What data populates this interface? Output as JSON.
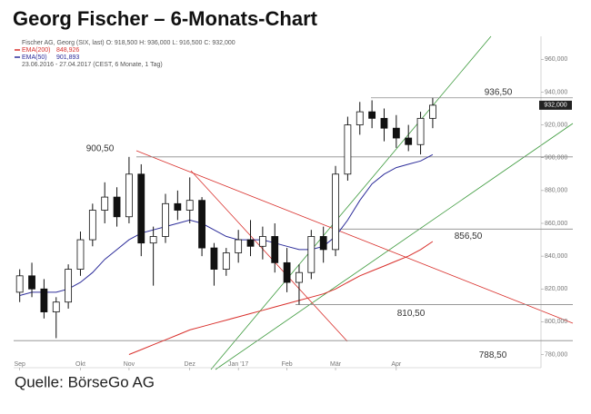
{
  "chart_data": {
    "type": "candlestick",
    "title": "Georg Fischer – 6-Monats-Chart",
    "source": "Quelle: BörseGo AG",
    "info": [
      "Fischer AG, Georg (SIX, last)  O: 918,500  H: 936,000  L: 916,500  C: 932,000",
      "23.06.2016 - 27.04.2017  (CEST, 6 Monate, 1 Tag)"
    ],
    "categories": [
      "Sep",
      null,
      null,
      null,
      null,
      "Okt",
      null,
      null,
      null,
      "Nov",
      null,
      null,
      null,
      null,
      "Dez",
      null,
      null,
      null,
      "Jan '17",
      null,
      null,
      null,
      "Feb",
      null,
      null,
      null,
      "Mär",
      null,
      null,
      null,
      null,
      "Apr",
      null,
      null,
      null
    ],
    "open": [
      818,
      828,
      820,
      806,
      812,
      832,
      850,
      868,
      876,
      864,
      890,
      848,
      852,
      872,
      868,
      874,
      845,
      832,
      842,
      850,
      846,
      852,
      836,
      824,
      830,
      852,
      844,
      890,
      920,
      928,
      924,
      918,
      912,
      908,
      924
    ],
    "high": [
      832,
      836,
      826,
      815,
      835,
      855,
      872,
      885,
      882,
      900.5,
      896,
      858,
      878,
      880,
      888,
      876,
      848,
      845,
      856,
      862,
      858,
      860,
      845,
      835,
      856,
      858,
      895,
      925,
      934,
      935,
      930,
      926,
      920,
      928,
      936.5
    ],
    "low": [
      812,
      815,
      802,
      790,
      808,
      828,
      846,
      860,
      858,
      860,
      840,
      822,
      848,
      862,
      860,
      840,
      822,
      828,
      836,
      840,
      838,
      830,
      818,
      810.5,
      826,
      836,
      840,
      886,
      914,
      918,
      910,
      906,
      904,
      902,
      918
    ],
    "close": [
      828,
      820,
      806,
      812,
      832,
      850,
      868,
      876,
      864,
      890,
      848,
      852,
      872,
      868,
      874,
      845,
      832,
      842,
      850,
      846,
      852,
      836,
      824,
      830,
      852,
      844,
      890,
      920,
      928,
      924,
      918,
      912,
      908,
      924,
      932
    ],
    "series": [
      {
        "name": "EMA(200)",
        "last_label": "848,926",
        "color": "#d9302c",
        "values": [
          null,
          null,
          null,
          null,
          null,
          null,
          null,
          null,
          null,
          780,
          783,
          786,
          789,
          792,
          795,
          797,
          799,
          801,
          803,
          805,
          807,
          809,
          811,
          813,
          815,
          817,
          820,
          824,
          828,
          831,
          834,
          837,
          840,
          844,
          848.926
        ]
      },
      {
        "name": "EMA(50)",
        "last_label": "901,893",
        "color": "#2d2d9a",
        "values": [
          816,
          818,
          818,
          818,
          820,
          824,
          830,
          838,
          844,
          850,
          854,
          856,
          858,
          860,
          862,
          860,
          856,
          852,
          850,
          850,
          850,
          848,
          846,
          844,
          844,
          846,
          852,
          862,
          874,
          884,
          890,
          894,
          896,
          898,
          901.893
        ]
      }
    ],
    "last_price": {
      "value": 932,
      "label": "932,000"
    },
    "annotations": [
      {
        "value": 900.5,
        "label": "900,50"
      },
      {
        "value": 936.5,
        "label": "936,50"
      },
      {
        "value": 856.5,
        "label": "856,50"
      },
      {
        "value": 810.5,
        "label": "810,50"
      },
      {
        "value": 788.5,
        "label": "788,50"
      }
    ],
    "ylim": [
      772,
      974
    ],
    "yticks": [
      {
        "value": 780,
        "label": "780,000"
      },
      {
        "value": 800,
        "label": "800,000"
      },
      {
        "value": 820,
        "label": "820,000"
      },
      {
        "value": 840,
        "label": "840,000"
      },
      {
        "value": 860,
        "label": "860,000"
      },
      {
        "value": 880,
        "label": "880,000"
      },
      {
        "value": 900,
        "label": "900,000"
      },
      {
        "value": 920,
        "label": "920,000"
      },
      {
        "value": 940,
        "label": "940,000"
      },
      {
        "value": 960,
        "label": "960,000"
      }
    ]
  }
}
